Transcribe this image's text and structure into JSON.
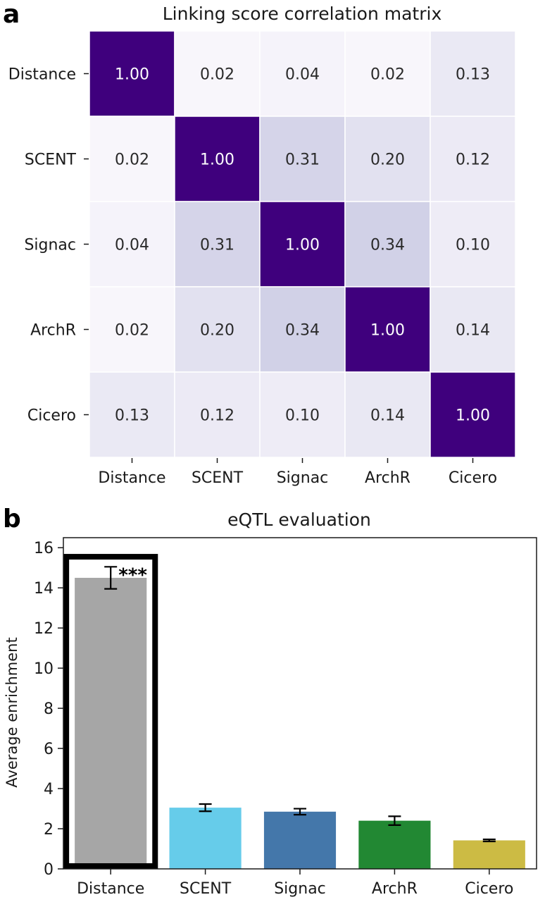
{
  "chart_data": [
    {
      "panel_label": "a",
      "type": "heatmap",
      "title": "Linking score correlation matrix",
      "row_labels": [
        "Distance",
        "SCENT",
        "Signac",
        "ArchR",
        "Cicero"
      ],
      "col_labels": [
        "Distance",
        "SCENT",
        "Signac",
        "ArchR",
        "Cicero"
      ],
      "values": [
        [
          1.0,
          0.02,
          0.04,
          0.02,
          0.13
        ],
        [
          0.02,
          1.0,
          0.31,
          0.2,
          0.12
        ],
        [
          0.04,
          0.31,
          1.0,
          0.34,
          0.1
        ],
        [
          0.02,
          0.2,
          0.34,
          1.0,
          0.14
        ],
        [
          0.13,
          0.12,
          0.1,
          0.14,
          1.0
        ]
      ],
      "value_labels": [
        [
          "1.00",
          "0.02",
          "0.04",
          "0.02",
          "0.13"
        ],
        [
          "0.02",
          "1.00",
          "0.31",
          "0.20",
          "0.12"
        ],
        [
          "0.04",
          "0.31",
          "1.00",
          "0.34",
          "0.10"
        ],
        [
          "0.02",
          "0.20",
          "0.34",
          "1.00",
          "0.14"
        ],
        [
          "0.13",
          "0.12",
          "0.10",
          "0.14",
          "1.00"
        ]
      ],
      "colormap": "Purples",
      "high_color": "#3f007d"
    },
    {
      "panel_label": "b",
      "type": "bar",
      "title": "eQTL evaluation",
      "ylabel": "Average enrichment",
      "categories": [
        "Distance",
        "SCENT",
        "Signac",
        "ArchR",
        "Cicero"
      ],
      "values": [
        14.5,
        3.05,
        2.85,
        2.4,
        1.42
      ],
      "errors": [
        0.55,
        0.18,
        0.15,
        0.22,
        0.05
      ],
      "colors": [
        "#a6a6a6",
        "#66ccea",
        "#4477aa",
        "#228833",
        "#ccbb44"
      ],
      "ylim": [
        0,
        16.5
      ],
      "yticks": [
        "0",
        "2",
        "4",
        "6",
        "8",
        "10",
        "12",
        "14",
        "16"
      ],
      "highlighted_category": "Distance",
      "annotation": "***"
    }
  ]
}
